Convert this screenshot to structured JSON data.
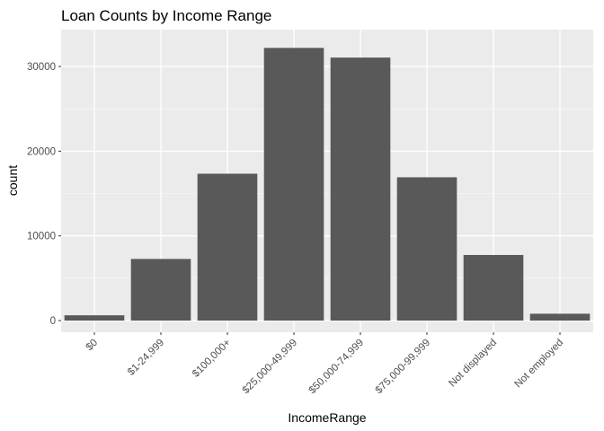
{
  "chart_data": {
    "type": "bar",
    "title": "Loan Counts by Income Range",
    "xlabel": "IncomeRange",
    "ylabel": "count",
    "categories": [
      "$0",
      "$1-24,999",
      "$100,000+",
      "$25,000-49,999",
      "$50,000-74,999",
      "$75,000-99,999",
      "Not displayed",
      "Not employed"
    ],
    "values": [
      621,
      7274,
      17337,
      32192,
      31050,
      16916,
      7741,
      806
    ],
    "ylim": [
      0,
      33500
    ],
    "yticks": [
      0,
      10000,
      20000,
      30000
    ],
    "ytick_labels": [
      "0",
      "10000",
      "20000",
      "30000"
    ],
    "grid": true,
    "legend": "none",
    "colors": {
      "bar": "#595959",
      "panel": "#ebebeb",
      "grid_major": "#ffffff",
      "grid_minor": "#f5f5f5"
    }
  }
}
